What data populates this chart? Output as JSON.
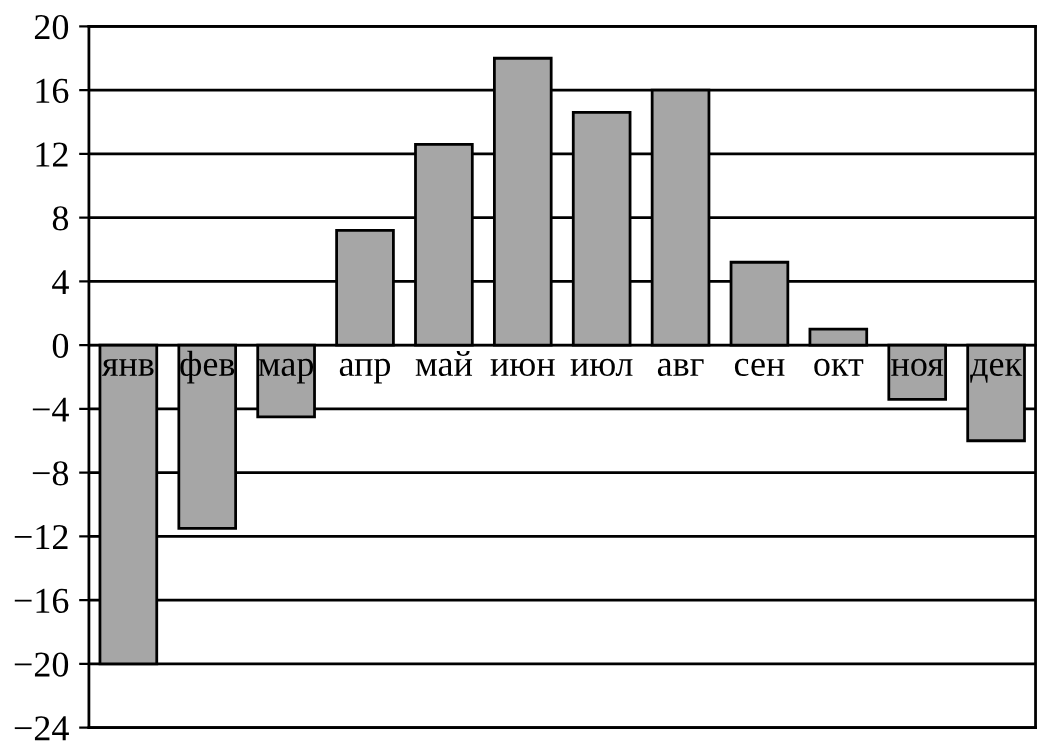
{
  "chart_data": {
    "type": "bar",
    "categories": [
      "янв",
      "фев",
      "мар",
      "апр",
      "май",
      "июн",
      "июл",
      "авг",
      "сен",
      "окт",
      "ноя",
      "дек"
    ],
    "values": [
      -20,
      -11.5,
      -4.5,
      7.2,
      12.6,
      18,
      14.6,
      16,
      5.2,
      1,
      -3.4,
      -6
    ],
    "color": "#a6a6a6",
    "ylim": [
      -24,
      20
    ],
    "yticks": [
      -24,
      -20,
      -16,
      -12,
      -8,
      -4,
      0,
      4,
      8,
      12,
      16,
      20
    ],
    "grid": "y",
    "legend": false
  }
}
